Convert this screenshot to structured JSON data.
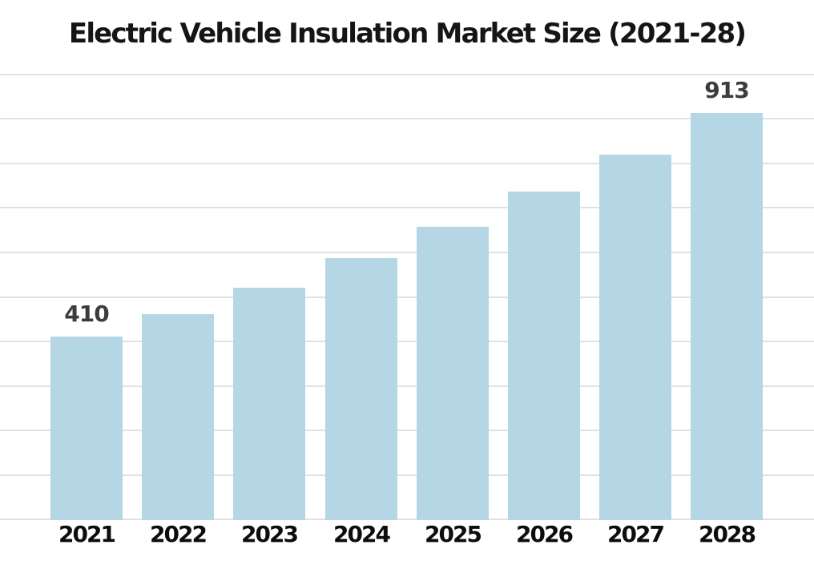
{
  "chart_data": {
    "type": "bar",
    "title": "Electric Vehicle Insulation Market Size (2021-28)",
    "categories": [
      "2021",
      "2022",
      "2023",
      "2024",
      "2025",
      "2026",
      "2027",
      "2028"
    ],
    "values": [
      410,
      462,
      520,
      587,
      658,
      737,
      820,
      913
    ],
    "value_labels": [
      {
        "index": 0,
        "text": "410"
      },
      {
        "index": 7,
        "text": "913"
      }
    ],
    "xlabel": "",
    "ylabel": "",
    "ylim": [
      0,
      1000
    ],
    "grid_step": 100,
    "grid": "horizontal-only",
    "legend_position": "none",
    "y_axis_tick_labels_visible": false,
    "colors": {
      "bar_fill": "#b5d7e5",
      "gridline": "#e1e1e1",
      "title": "#151515",
      "value_label": "#3c3c3c",
      "tick_label": "#0d0d0d",
      "background": "#ffffff"
    }
  }
}
